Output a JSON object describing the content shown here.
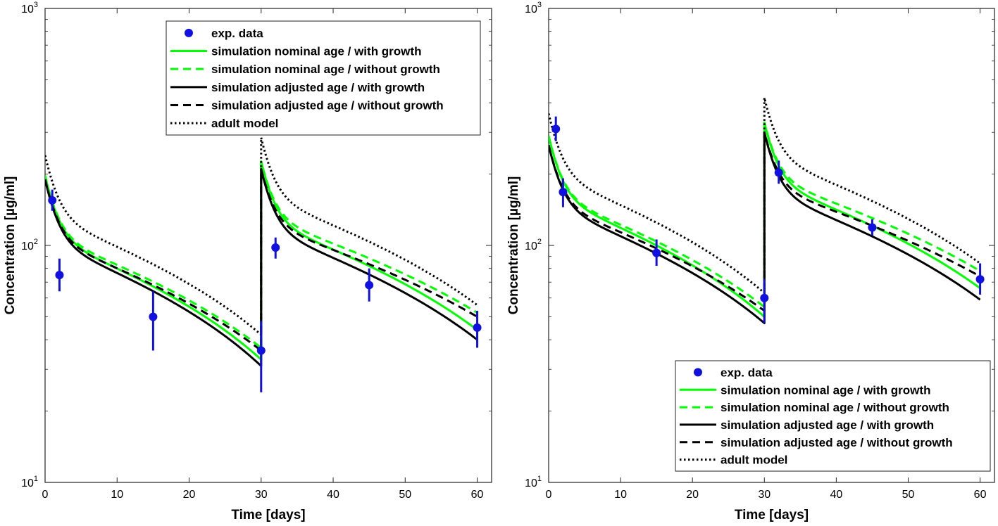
{
  "chart_data": [
    {
      "type": "line",
      "id": "left",
      "xlabel": "Time [days]",
      "ylabel": "Concentration [µg/ml]",
      "xlim": [
        0,
        62
      ],
      "ylim": [
        10,
        1000
      ],
      "yscale": "log",
      "xticks": [
        0,
        10,
        20,
        30,
        40,
        50,
        60
      ],
      "yticks": [
        {
          "value": 10,
          "base": "10",
          "exp": "1"
        },
        {
          "value": 100,
          "base": "10",
          "exp": "2"
        },
        {
          "value": 1000,
          "base": "10",
          "exp": "3"
        }
      ],
      "legend_position": "top-center",
      "series": [
        {
          "name": "simulation nominal age / with growth",
          "color": "#00ff00",
          "style": "solid",
          "t0": 0,
          "c0": 197,
          "peak": 226,
          "c30": 33,
          "c60": 44,
          "b": 0.5
        },
        {
          "name": "simulation nominal age / without growth",
          "color": "#00ff00",
          "style": "dashed",
          "t0": 0,
          "c0": 197,
          "peak": 226,
          "c30": 37,
          "c60": 52,
          "b": 0.5
        },
        {
          "name": "simulation adjusted age / with growth",
          "color": "#000000",
          "style": "solid",
          "t0": 0,
          "c0": 190,
          "peak": 210,
          "c30": 31,
          "c60": 40,
          "b": 0.5
        },
        {
          "name": "simulation adjusted age / without growth",
          "color": "#000000",
          "style": "dashed",
          "t0": 0,
          "c0": 190,
          "peak": 210,
          "c30": 36,
          "c60": 50,
          "b": 0.5
        },
        {
          "name": "adult model",
          "color": "#000000",
          "style": "dotted",
          "t0": 0,
          "c0": 240,
          "peak": 285,
          "c30": 42,
          "c60": 56,
          "b": 0.5
        }
      ],
      "data_points": [
        {
          "x": 1,
          "y": 155,
          "lo": 140,
          "hi": 172
        },
        {
          "x": 2,
          "y": 75,
          "lo": 64,
          "hi": 88
        },
        {
          "x": 15,
          "y": 50,
          "lo": 36,
          "hi": 64
        },
        {
          "x": 30,
          "y": 36,
          "lo": 24,
          "hi": 48
        },
        {
          "x": 32,
          "y": 98,
          "lo": 88,
          "hi": 108
        },
        {
          "x": 45,
          "y": 68,
          "lo": 58,
          "hi": 80
        },
        {
          "x": 60,
          "y": 45,
          "lo": 37,
          "hi": 53
        }
      ],
      "data_label": "exp. data",
      "data_color": "#1010e0"
    },
    {
      "type": "line",
      "id": "right",
      "xlabel": "Time [days]",
      "ylabel": "Concentration [µg/ml]",
      "xlim": [
        0,
        62
      ],
      "ylim": [
        10,
        1000
      ],
      "yscale": "log",
      "xticks": [
        0,
        10,
        20,
        30,
        40,
        50,
        60
      ],
      "yticks": [
        {
          "value": 10,
          "base": "10",
          "exp": "1"
        },
        {
          "value": 100,
          "base": "10",
          "exp": "2"
        },
        {
          "value": 1000,
          "base": "10",
          "exp": "3"
        }
      ],
      "legend_position": "bottom-right",
      "series": [
        {
          "name": "simulation nominal age / with growth",
          "color": "#00ff00",
          "style": "solid",
          "t0": 0,
          "c0": 290,
          "peak": 330,
          "c30": 50,
          "c60": 66,
          "b": 0.5
        },
        {
          "name": "simulation nominal age / without growth",
          "color": "#00ff00",
          "style": "dashed",
          "t0": 0,
          "c0": 290,
          "peak": 330,
          "c30": 55,
          "c60": 78,
          "b": 0.5
        },
        {
          "name": "simulation adjusted age / with growth",
          "color": "#000000",
          "style": "solid",
          "t0": 0,
          "c0": 265,
          "peak": 300,
          "c30": 47,
          "c60": 59,
          "b": 0.5
        },
        {
          "name": "simulation adjusted age / without growth",
          "color": "#000000",
          "style": "dashed",
          "t0": 0,
          "c0": 265,
          "peak": 300,
          "c30": 53,
          "c60": 74,
          "b": 0.5
        },
        {
          "name": "adult model",
          "color": "#000000",
          "style": "dotted",
          "t0": 0,
          "c0": 360,
          "peak": 420,
          "c30": 63,
          "c60": 84,
          "b": 0.5
        }
      ],
      "data_points": [
        {
          "x": 1,
          "y": 310,
          "lo": 275,
          "hi": 350
        },
        {
          "x": 2,
          "y": 168,
          "lo": 145,
          "hi": 192
        },
        {
          "x": 15,
          "y": 93,
          "lo": 82,
          "hi": 106
        },
        {
          "x": 30,
          "y": 60,
          "lo": 47,
          "hi": 72
        },
        {
          "x": 32,
          "y": 203,
          "lo": 182,
          "hi": 228
        },
        {
          "x": 45,
          "y": 119,
          "lo": 110,
          "hi": 129
        },
        {
          "x": 60,
          "y": 72,
          "lo": 62,
          "hi": 84
        }
      ],
      "data_label": "exp. data",
      "data_color": "#1010e0"
    }
  ]
}
